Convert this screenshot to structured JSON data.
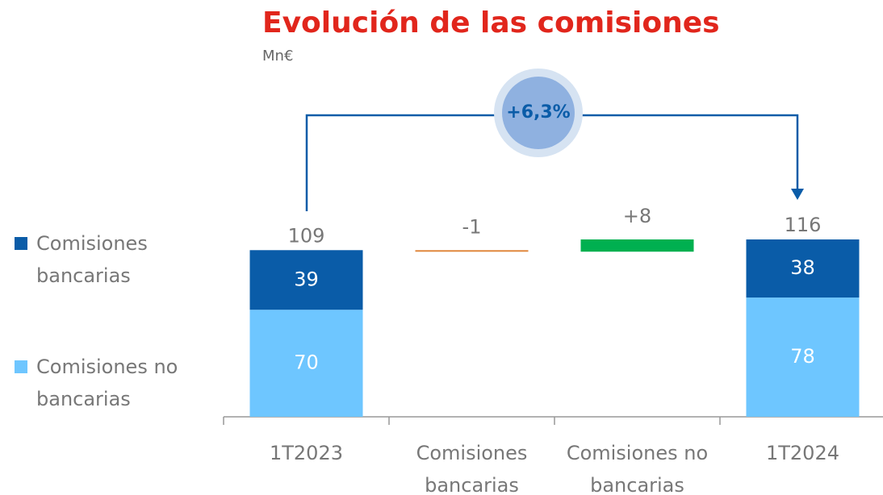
{
  "chart_data": {
    "type": "waterfall",
    "title": "Evolución de las comisiones",
    "subtitle": "Mn€",
    "categories": [
      "1T2023",
      "Comisiones bancarias",
      "Comisiones no bancarias",
      "1T2024"
    ],
    "series": [
      {
        "name": "Comisiones bancarias",
        "color": "#0a5ca8",
        "values": [
          39,
          null,
          null,
          38
        ]
      },
      {
        "name": "Comisiones no bancarias",
        "color": "#6ec6ff",
        "values": [
          70,
          null,
          null,
          78
        ]
      }
    ],
    "totals": [
      109,
      null,
      null,
      116
    ],
    "changes": [
      null,
      -1,
      8,
      null
    ],
    "change_labels": [
      null,
      "-1",
      "+8",
      null
    ],
    "positive_color": "#00b050",
    "negative_color": "#e0873c",
    "annotation": "+6,3%",
    "legend": "left"
  }
}
